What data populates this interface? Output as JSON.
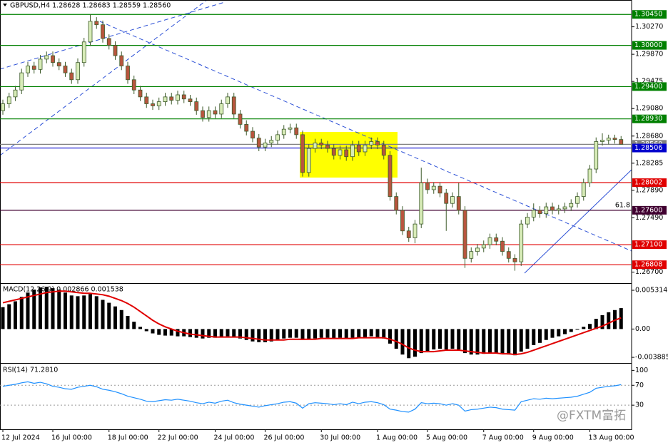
{
  "chart_data": [
    {
      "type": "candlestick",
      "title": "GBPUSD,H4 1.28628 1.28683 1.28559 1.28560",
      "categories": [
        "12 Jul 2024",
        null,
        null,
        null,
        null,
        null,
        null,
        null,
        "16 Jul 00:00",
        null,
        null,
        null,
        null,
        null,
        null,
        null,
        null,
        "18 Jul 00:00",
        null,
        null,
        null,
        null,
        null,
        null,
        null,
        "22 Jul 00:00",
        null,
        null,
        null,
        null,
        null,
        null,
        null,
        null,
        "24 Jul 00:00",
        null,
        null,
        null,
        null,
        null,
        null,
        null,
        "26 Jul 00:00",
        null,
        null,
        null,
        null,
        null,
        null,
        null,
        null,
        "30 Jul 00:00",
        null,
        null,
        null,
        null,
        null,
        null,
        null,
        null,
        "1 Aug 00:00",
        null,
        null,
        null,
        null,
        null,
        null,
        null,
        "5 Aug 00:00",
        null,
        null,
        null,
        null,
        null,
        null,
        null,
        null,
        "7 Aug 00:00",
        null,
        null,
        null,
        null,
        null,
        null,
        null,
        "9 Aug 00:00",
        null,
        null,
        null,
        null,
        null,
        null,
        null,
        null,
        "13 Aug 00:00",
        null,
        null,
        null,
        null,
        null
      ],
      "open": [
        1.2905,
        1.2915,
        1.2925,
        1.2935,
        1.296,
        1.297,
        1.2965,
        1.298,
        1.2985,
        1.2975,
        1.297,
        1.296,
        1.295,
        1.2975,
        1.3005,
        1.3035,
        1.303,
        1.301,
        1.3,
        1.2985,
        1.297,
        1.295,
        1.2935,
        1.2925,
        1.2915,
        1.2912,
        1.2918,
        1.2925,
        1.292,
        1.2928,
        1.2922,
        1.2918,
        1.2905,
        1.2895,
        1.2905,
        1.29,
        1.2915,
        1.2925,
        1.29,
        1.2885,
        1.2875,
        1.2865,
        1.2852,
        1.2858,
        1.2862,
        1.287,
        1.2878,
        1.288,
        1.287,
        1.2815,
        1.285,
        1.2858,
        1.2855,
        1.285,
        1.284,
        1.2848,
        1.2838,
        1.2855,
        1.2845,
        1.2855,
        1.286,
        1.2855,
        1.284,
        1.278,
        1.276,
        1.273,
        1.272,
        1.274,
        1.28,
        1.279,
        1.2795,
        1.2785,
        1.277,
        1.278,
        1.276,
        1.269,
        1.27,
        1.2705,
        1.271,
        1.272,
        1.2715,
        1.27,
        1.269,
        1.2685,
        1.274,
        1.275,
        1.276,
        1.2755,
        1.2765,
        1.276,
        1.2762,
        1.2765,
        1.277,
        1.278,
        1.28,
        1.282,
        1.286,
        1.2862,
        1.2865,
        1.2863
      ],
      "high": [
        1.2921,
        1.2931,
        1.2941,
        1.2966,
        1.2976,
        1.2976,
        1.2986,
        1.2991,
        1.2991,
        1.2981,
        1.2976,
        1.2966,
        1.2981,
        1.3011,
        1.3045,
        1.3041,
        1.3036,
        1.3016,
        1.3006,
        1.2991,
        1.2976,
        1.2956,
        1.2941,
        1.2931,
        1.2921,
        1.2924,
        1.2931,
        1.2931,
        1.2934,
        1.2934,
        1.2928,
        1.2924,
        1.2911,
        1.2911,
        1.2911,
        1.2921,
        1.2931,
        1.2931,
        1.2906,
        1.2891,
        1.2881,
        1.2871,
        1.2864,
        1.2868,
        1.2876,
        1.2884,
        1.2886,
        1.2886,
        1.2876,
        1.2856,
        1.2864,
        1.2864,
        1.2861,
        1.2856,
        1.2854,
        1.2854,
        1.2861,
        1.2861,
        1.2861,
        1.2866,
        1.2866,
        1.2861,
        1.2846,
        1.2786,
        1.2766,
        1.2736,
        1.2746,
        1.2822,
        1.2806,
        1.2801,
        1.2801,
        1.2791,
        1.2786,
        1.28,
        1.2766,
        1.2706,
        1.2711,
        1.2716,
        1.2726,
        1.2726,
        1.2721,
        1.2706,
        1.2696,
        1.2746,
        1.2756,
        1.277,
        1.2766,
        1.2771,
        1.2771,
        1.2768,
        1.2771,
        1.2776,
        1.2786,
        1.2806,
        1.2826,
        1.2866,
        1.2872,
        1.287,
        1.287,
        1.2868
      ],
      "low": [
        1.2899,
        1.2909,
        1.2919,
        1.2929,
        1.2954,
        1.2959,
        1.2959,
        1.2974,
        1.2969,
        1.2964,
        1.2954,
        1.2944,
        1.2944,
        1.2969,
        1.2999,
        1.3024,
        1.3004,
        1.2994,
        1.2979,
        1.2964,
        1.2944,
        1.2929,
        1.2919,
        1.2909,
        1.2906,
        1.2906,
        1.2912,
        1.2914,
        1.2914,
        1.2916,
        1.2912,
        1.2899,
        1.2889,
        1.2889,
        1.2894,
        1.2894,
        1.2909,
        1.2894,
        1.2879,
        1.2869,
        1.2859,
        1.2846,
        1.2846,
        1.2852,
        1.2856,
        1.2864,
        1.2872,
        1.2864,
        1.2809,
        1.2809,
        1.2844,
        1.2849,
        1.2844,
        1.2834,
        1.2834,
        1.2832,
        1.2832,
        1.2839,
        1.2839,
        1.2849,
        1.2849,
        1.2834,
        1.2774,
        1.2754,
        1.2724,
        1.2714,
        1.2712,
        1.2734,
        1.2784,
        1.2784,
        1.2779,
        1.273,
        1.2764,
        1.2754,
        1.2676,
        1.2684,
        1.2694,
        1.2699,
        1.2704,
        1.2709,
        1.2694,
        1.2684,
        1.2672,
        1.2679,
        1.2734,
        1.2744,
        1.2749,
        1.2749,
        1.2754,
        1.2754,
        1.2756,
        1.2759,
        1.2764,
        1.2774,
        1.2794,
        1.2814,
        1.2854,
        1.2856,
        1.2857,
        1.2856
      ],
      "close": [
        1.2915,
        1.2925,
        1.2935,
        1.296,
        1.297,
        1.2965,
        1.298,
        1.2985,
        1.2975,
        1.297,
        1.296,
        1.295,
        1.2975,
        1.3005,
        1.3035,
        1.303,
        1.301,
        1.3,
        1.2985,
        1.297,
        1.295,
        1.2935,
        1.2925,
        1.2915,
        1.2912,
        1.2918,
        1.2925,
        1.292,
        1.2928,
        1.2922,
        1.2918,
        1.2905,
        1.2895,
        1.2905,
        1.29,
        1.2915,
        1.2925,
        1.29,
        1.2885,
        1.2875,
        1.2865,
        1.2852,
        1.2858,
        1.2862,
        1.287,
        1.2878,
        1.288,
        1.287,
        1.2815,
        1.285,
        1.2858,
        1.2855,
        1.285,
        1.284,
        1.2848,
        1.2838,
        1.2855,
        1.2845,
        1.2855,
        1.286,
        1.2855,
        1.284,
        1.278,
        1.276,
        1.273,
        1.272,
        1.274,
        1.28,
        1.279,
        1.2795,
        1.2785,
        1.277,
        1.278,
        1.276,
        1.269,
        1.27,
        1.2705,
        1.271,
        1.272,
        1.2715,
        1.27,
        1.269,
        1.2685,
        1.274,
        1.275,
        1.276,
        1.2755,
        1.2765,
        1.276,
        1.2762,
        1.2765,
        1.277,
        1.278,
        1.28,
        1.282,
        1.286,
        1.2862,
        1.2865,
        1.2863,
        1.2856
      ],
      "up_color": "#d8ecb8",
      "down_color": "#b8553e",
      "outline_color": "#3d5a2a",
      "ylim": [
        1.2654,
        1.3066
      ],
      "yticks": [
        {
          "value": 1.3027,
          "label": "1.30270"
        },
        {
          "value": 1.2987,
          "label": "1.29870"
        },
        {
          "value": 1.29475,
          "label": "1.29475"
        },
        {
          "value": 1.2908,
          "label": "1.29080"
        },
        {
          "value": 1.2868,
          "label": "1.28680"
        },
        {
          "value": 1.28285,
          "label": "1.28285"
        },
        {
          "value": 1.2789,
          "label": "1.27890"
        },
        {
          "value": 1.2749,
          "label": "1.27490"
        },
        {
          "value": 1.267,
          "label": "1.26700"
        }
      ],
      "levels": [
        {
          "value": 1.3045,
          "label": "1.30450",
          "color": "#008000"
        },
        {
          "value": 1.3,
          "label": "1.30000",
          "color": "#008000"
        },
        {
          "value": 1.294,
          "label": "1.29400",
          "color": "#008000"
        },
        {
          "value": 1.2893,
          "label": "1.28930",
          "color": "#008000"
        },
        {
          "value": 1.2856,
          "label": "1.28560",
          "color": "#808080"
        },
        {
          "value": 1.28506,
          "label": "1.28506",
          "color": "#0000cd"
        },
        {
          "value": 1.28002,
          "label": "1.28002",
          "color": "#e00000"
        },
        {
          "value": 1.276,
          "label": "1.27600",
          "color": "#400030"
        },
        {
          "value": 1.271,
          "label": "1.27100",
          "color": "#e00000"
        },
        {
          "value": 1.26808,
          "label": "1.26808",
          "color": "#e00000"
        }
      ],
      "annotation": "61.8"
    },
    {
      "type": "macd",
      "title": "MACD(12,26,9) 0.002866 0.001538",
      "values": [
        0.003,
        0.0034,
        0.0038,
        0.0044,
        0.005,
        0.0054,
        0.0057,
        0.0058,
        0.0056,
        0.0054,
        0.005,
        0.0046,
        0.0045,
        0.0046,
        0.0048,
        0.0045,
        0.004,
        0.0036,
        0.0031,
        0.0026,
        0.0018,
        0.001,
        0.0003,
        -0.0003,
        -0.0006,
        -0.0008,
        -0.0009,
        -0.0009,
        -0.001,
        -0.001,
        -0.0011,
        -0.0012,
        -0.0013,
        -0.0012,
        -0.0012,
        -0.0011,
        -0.001,
        -0.0011,
        -0.0013,
        -0.0015,
        -0.0017,
        -0.0018,
        -0.0018,
        -0.0017,
        -0.0015,
        -0.0013,
        -0.0012,
        -0.0012,
        -0.0015,
        -0.0014,
        -0.0013,
        -0.0012,
        -0.0012,
        -0.0013,
        -0.0012,
        -0.0013,
        -0.0012,
        -0.0012,
        -0.0011,
        -0.001,
        -0.0011,
        -0.0013,
        -0.002,
        -0.0027,
        -0.0035,
        -0.004,
        -0.0038,
        -0.0033,
        -0.003,
        -0.0028,
        -0.0027,
        -0.0028,
        -0.0027,
        -0.0028,
        -0.0033,
        -0.0035,
        -0.0035,
        -0.0034,
        -0.0033,
        -0.0033,
        -0.0034,
        -0.0035,
        -0.0036,
        -0.0031,
        -0.0027,
        -0.0022,
        -0.0019,
        -0.0015,
        -0.0012,
        -0.001,
        -0.0007,
        -0.0004,
        -0.0001,
        0.0003,
        0.0007,
        0.0014,
        0.0019,
        0.0023,
        0.0026,
        0.002866
      ],
      "signal": [
        0.0036,
        0.0038,
        0.004,
        0.0042,
        0.0044,
        0.0046,
        0.0048,
        0.005,
        0.0051,
        0.0052,
        0.0052,
        0.0051,
        0.005,
        0.0049,
        0.0049,
        0.0048,
        0.0047,
        0.0045,
        0.0042,
        0.0039,
        0.0035,
        0.003,
        0.0024,
        0.0018,
        0.0012,
        0.0007,
        0.0003,
        0.0,
        -0.0003,
        -0.0005,
        -0.0007,
        -0.0008,
        -0.0009,
        -0.001,
        -0.0011,
        -0.0011,
        -0.0011,
        -0.0011,
        -0.0011,
        -0.0012,
        -0.0013,
        -0.0014,
        -0.0015,
        -0.0015,
        -0.0015,
        -0.0015,
        -0.0014,
        -0.0014,
        -0.0014,
        -0.0014,
        -0.0014,
        -0.0013,
        -0.0013,
        -0.0013,
        -0.0013,
        -0.0013,
        -0.0013,
        -0.0012,
        -0.0012,
        -0.0012,
        -0.0012,
        -0.0012,
        -0.0014,
        -0.0017,
        -0.0021,
        -0.0026,
        -0.0029,
        -0.0031,
        -0.0031,
        -0.0031,
        -0.003,
        -0.0029,
        -0.0029,
        -0.0029,
        -0.003,
        -0.0031,
        -0.0032,
        -0.0033,
        -0.0033,
        -0.0033,
        -0.0034,
        -0.0034,
        -0.0035,
        -0.0034,
        -0.0032,
        -0.0029,
        -0.0026,
        -0.0023,
        -0.002,
        -0.0017,
        -0.0014,
        -0.0011,
        -0.0008,
        -0.0005,
        -0.0002,
        0.0001,
        0.0004,
        0.0008,
        0.0012,
        0.001538
      ],
      "color": "#000000",
      "signal_color": "#e00000",
      "ylim": [
        -0.00456,
        0.0061
      ],
      "yticks": [
        0.005314,
        {
          "value": 0,
          "label": "0.00"
        },
        -0.003885
      ]
    },
    {
      "type": "line",
      "title": "RSI(14) 71.2810",
      "values": [
        68,
        70,
        72,
        75,
        77,
        74,
        76,
        73,
        68,
        66,
        63,
        62,
        66,
        68,
        70,
        67,
        62,
        60,
        57,
        53,
        48,
        45,
        42,
        38,
        37,
        39,
        41,
        40,
        42,
        40,
        38,
        35,
        33,
        36,
        34,
        38,
        40,
        35,
        32,
        30,
        28,
        26,
        29,
        31,
        33,
        36,
        37,
        34,
        24,
        33,
        35,
        34,
        33,
        31,
        33,
        31,
        36,
        33,
        36,
        37,
        35,
        31,
        22,
        20,
        17,
        16,
        22,
        35,
        33,
        34,
        33,
        30,
        33,
        30,
        18,
        21,
        22,
        24,
        26,
        25,
        22,
        21,
        20,
        37,
        40,
        43,
        42,
        44,
        43,
        44,
        45,
        46,
        48,
        52,
        56,
        64,
        66,
        68,
        69,
        71.281
      ],
      "color": "#1e90ff",
      "ylim": [
        -20,
        112
      ],
      "yticks": [
        100,
        70,
        30
      ],
      "dashed_levels": [
        70,
        30
      ],
      "watermark": "@FXTM富拓"
    }
  ]
}
